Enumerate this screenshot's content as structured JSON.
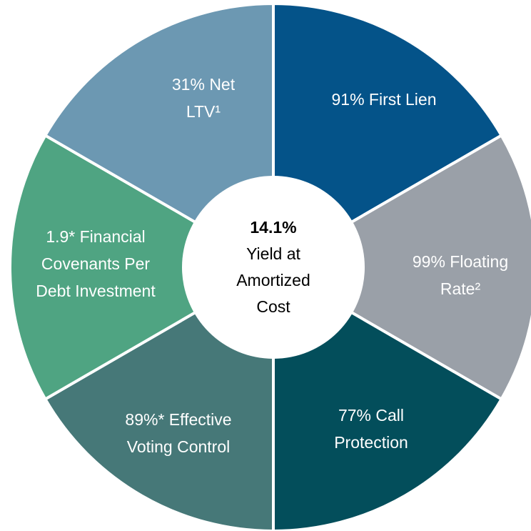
{
  "center": {
    "lines": [
      "14.1%",
      "Yield at",
      "Amortized",
      "Cost"
    ]
  },
  "segments": [
    {
      "lines": [
        "91% First Lien"
      ],
      "color": "#045389"
    },
    {
      "lines": [
        "99% Floating",
        "Rate²"
      ],
      "color": "#9aa0a8"
    },
    {
      "lines": [
        "77% Call",
        "Protection"
      ],
      "color": "#034e5b"
    },
    {
      "lines": [
        "89%* Effective",
        "Voting Control"
      ],
      "color": "#467878"
    },
    {
      "lines": [
        "1.9* Financial",
        "Covenants Per",
        "Debt Investment"
      ],
      "color": "#4fa482"
    },
    {
      "lines": [
        "31% Net",
        "LTV¹"
      ],
      "color": "#6c98b2"
    }
  ]
}
